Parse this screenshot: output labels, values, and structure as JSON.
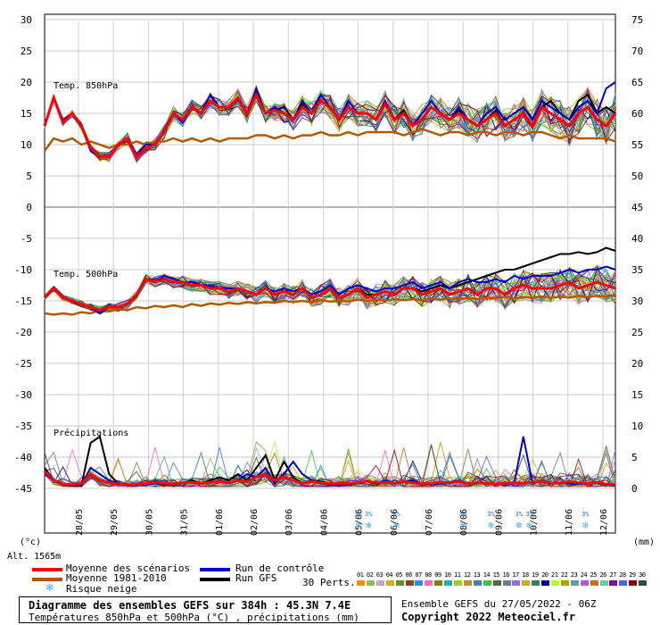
{
  "chart_data": {
    "type": "line",
    "title": "Diagramme des ensembles GEFS sur 384h : 45.3N 7.4E",
    "subtitle": "Températures 850hPa et 500hPa (°C) , précipitations (mm)",
    "run_label": "Ensemble GEFS du 27/05/2022 - 06Z",
    "copyright": "Copyright 2022 Meteociel.fr",
    "left_unit": "(°c)",
    "right_unit": "(mm)",
    "altitude": "Alt. 1565m",
    "perts_label": "30 Perts.",
    "x_dates": [
      "28/05",
      "29/05",
      "30/05",
      "31/05",
      "01/06",
      "02/06",
      "03/06",
      "04/06",
      "05/06",
      "06/06",
      "07/06",
      "08/06",
      "09/06",
      "10/06",
      "11/06",
      "12/06"
    ],
    "left_ticks": [
      "30",
      "25",
      "20",
      "15",
      "10",
      "5",
      "0",
      "-5",
      "-10",
      "-15",
      "-20",
      "-25",
      "-30",
      "-35",
      "-40",
      "-45"
    ],
    "right_ticks_top": [
      "75",
      "70",
      "65",
      "60",
      "55",
      "50"
    ],
    "right_ticks_bottom": [
      "45",
      "40",
      "35",
      "30",
      "25",
      "20",
      "15",
      "10",
      "5",
      "0"
    ],
    "panels": {
      "t850": {
        "label": "Temp. 850hPa",
        "ylim": [
          0,
          30
        ]
      },
      "t500": {
        "label": "Temp. 500hPa",
        "ylim": [
          -20,
          -5
        ]
      },
      "precip": {
        "label": "Précipitations",
        "ylim": [
          0,
          10
        ]
      }
    },
    "series": [
      {
        "name": "Moyenne des scénarios",
        "color": "#ff0000",
        "t850": [
          13,
          17.5,
          13.5,
          15,
          13,
          9.5,
          8,
          8,
          10,
          11,
          8,
          9.5,
          10,
          12,
          15,
          14,
          16,
          15,
          17,
          16,
          16,
          17.5,
          15,
          18,
          15,
          15.5,
          15,
          14,
          16,
          15,
          17,
          16,
          14,
          16,
          15,
          15,
          14,
          16.5,
          14,
          15,
          13,
          14,
          16,
          15,
          14,
          15,
          14,
          13,
          14,
          15,
          13,
          14,
          15,
          13,
          16,
          15,
          14,
          13,
          15,
          16,
          14,
          13,
          15
        ],
        "t500": [
          -14.5,
          -13,
          -14.5,
          -15,
          -15.5,
          -16,
          -16.5,
          -16,
          -16,
          -15.5,
          -14,
          -11.5,
          -12,
          -11.5,
          -12,
          -12,
          -12.5,
          -12.5,
          -13,
          -13,
          -13.5,
          -13,
          -13.5,
          -14,
          -13,
          -14,
          -13.5,
          -14,
          -13,
          -14.5,
          -14,
          -13,
          -14.5,
          -14,
          -13,
          -14.5,
          -14,
          -13.5,
          -14,
          -13,
          -13,
          -14,
          -13.5,
          -13,
          -14,
          -13.5,
          -13,
          -14,
          -13,
          -13,
          -14,
          -13,
          -12.5,
          -13,
          -13,
          -13,
          -12.5,
          -12,
          -13,
          -12.5,
          -12,
          -12.5,
          -13
        ],
        "precip": [
          2.5,
          1,
          0.3,
          0.3,
          0.5,
          2,
          1,
          0.6,
          0.4,
          0.3,
          0.3,
          0.5,
          0.7,
          0.5,
          0.4,
          0.6,
          0.7,
          0.5,
          0.7,
          0.8,
          0.6,
          1,
          0.8,
          1.5,
          2,
          1,
          1.5,
          1,
          0.5,
          0.8,
          0.6,
          0.5,
          0.5,
          0.5,
          0.6,
          0.9,
          0.6,
          0.7,
          0.5,
          0.8,
          0.6,
          0.4,
          0.5,
          0.7,
          0.6,
          0.8,
          0.5,
          0.6,
          0.5,
          0.4,
          0.5,
          0.6,
          0.5,
          0.7,
          0.8,
          0.6,
          0.5,
          0.8,
          0.6,
          0.5,
          0.7,
          0.4,
          0.3
        ]
      },
      {
        "name": "Moyenne 1981-2010",
        "color": "#b35a00",
        "t850": [
          9,
          11,
          10.5,
          11,
          10,
          10.5,
          10,
          9.5,
          10,
          10,
          10.5,
          10,
          10.5,
          10.5,
          11,
          10.5,
          11,
          10.5,
          11,
          10.5,
          11,
          11,
          11,
          11.5,
          11.5,
          11,
          11.5,
          11,
          11.5,
          11.5,
          12,
          11.5,
          11.5,
          12,
          11.5,
          12,
          12,
          12,
          12,
          11.5,
          12,
          12.5,
          12,
          11.5,
          12,
          12,
          11.5,
          12,
          12,
          11.5,
          12,
          12,
          11.5,
          12,
          12,
          11.5,
          11,
          11.5,
          11,
          11,
          11,
          11,
          10.5
        ],
        "t500": [
          -17,
          -17.2,
          -17,
          -17.2,
          -16.8,
          -17,
          -16.5,
          -16.7,
          -16.3,
          -16.5,
          -16,
          -16.2,
          -15.8,
          -16,
          -15.7,
          -16,
          -15.5,
          -15.8,
          -15.4,
          -15.6,
          -15.3,
          -15.5,
          -15.2,
          -15.4,
          -15.2,
          -15.3,
          -15,
          -15.2,
          -15,
          -15.2,
          -14.9,
          -15.1,
          -15,
          -15.1,
          -14.8,
          -15,
          -14.8,
          -15,
          -14.7,
          -14.9,
          -14.7,
          -14.9,
          -14.6,
          -14.8,
          -14.6,
          -14.8,
          -14.5,
          -14.7,
          -14.5,
          -14.6,
          -14.4,
          -14.6,
          -14.4,
          -14.5,
          -14.3,
          -14.5,
          -14.3,
          -14.5,
          -14.2,
          -14.4,
          -14.2,
          -14.3,
          -14.2
        ]
      },
      {
        "name": "Run de contrôle",
        "color": "#0000cc",
        "t850": [
          13,
          17.5,
          14,
          15,
          13,
          9,
          8,
          8,
          10,
          11,
          8.5,
          10,
          10,
          12,
          15,
          13.5,
          16,
          15,
          18,
          16,
          16,
          17.5,
          15,
          19,
          15,
          16,
          15,
          14,
          17,
          15,
          18,
          16,
          14,
          17,
          15,
          15,
          14,
          17,
          14,
          15,
          13,
          15,
          17,
          15,
          14,
          16,
          14,
          13,
          15,
          16,
          14,
          15,
          16,
          14,
          17,
          16,
          15,
          14,
          16,
          17,
          15,
          19,
          20
        ],
        "t500": [
          -14.5,
          -13,
          -14.5,
          -15,
          -15.5,
          -16,
          -17,
          -16,
          -16,
          -15.5,
          -14,
          -11.5,
          -12,
          -11,
          -11.5,
          -12,
          -12,
          -12.5,
          -12.5,
          -13,
          -13,
          -13,
          -13.5,
          -14,
          -13,
          -13.5,
          -13,
          -13.5,
          -13,
          -14,
          -13.5,
          -12.5,
          -14,
          -13,
          -12.5,
          -13,
          -13.5,
          -13,
          -13,
          -12.5,
          -12,
          -13,
          -12.5,
          -12,
          -13,
          -12,
          -11.5,
          -12,
          -12,
          -11.5,
          -12,
          -11,
          -11.5,
          -11,
          -11,
          -11,
          -10.5,
          -10,
          -10.5,
          -10,
          -10,
          -9.5,
          -10
        ],
        "precip": [
          2,
          1,
          0.2,
          0.2,
          0.3,
          3,
          2,
          1,
          0.5,
          0.2,
          0.2,
          0.3,
          0.5,
          0.3,
          0.2,
          0.5,
          0.8,
          0.5,
          0.6,
          1,
          0.5,
          1,
          2,
          1.5,
          3,
          0.5,
          2,
          4,
          2,
          1,
          0.5,
          0.3,
          0.2,
          0.3,
          0.5,
          1,
          0.5,
          1,
          0.5,
          0.8,
          1,
          0.3,
          0.4,
          0.5,
          0.7,
          1,
          0.5,
          0.6,
          0.5,
          0.4,
          0.3,
          0.5,
          8,
          0.5,
          1,
          0.5,
          0.6,
          0.5,
          0.4,
          0.5,
          0.6,
          0.3,
          0.2
        ]
      },
      {
        "name": "Run GFS",
        "color": "#000000",
        "t850": [
          13,
          17.5,
          13.5,
          15,
          13,
          9.5,
          8,
          8,
          10,
          11,
          8,
          9.5,
          10,
          12,
          15,
          14,
          16,
          15,
          17,
          16,
          16,
          17.5,
          15,
          18.5,
          15,
          15.5,
          16,
          14,
          16.5,
          15,
          17,
          16,
          14,
          16,
          15,
          15,
          14,
          16.5,
          14,
          15.5,
          13,
          14,
          16,
          15,
          14,
          15.5,
          14,
          13,
          14,
          15.5,
          13,
          14,
          15,
          13,
          16,
          17,
          15,
          14,
          17,
          18,
          15,
          16,
          15
        ],
        "t500": [
          -14.5,
          -13,
          -14.5,
          -15,
          -15.5,
          -16,
          -16.5,
          -16,
          -16,
          -15.5,
          -14,
          -11.5,
          -12,
          -11.5,
          -12,
          -12,
          -12.5,
          -12.5,
          -13,
          -13,
          -13.5,
          -13,
          -13.5,
          -14,
          -13,
          -14,
          -13.5,
          -14,
          -13,
          -14.5,
          -14,
          -13,
          -14.5,
          -14,
          -13,
          -14,
          -14,
          -13.5,
          -14,
          -13,
          -13,
          -13.5,
          -13,
          -12.5,
          -13,
          -12.5,
          -12,
          -11.5,
          -11,
          -10.5,
          -10,
          -10,
          -9.5,
          -9,
          -8.5,
          -8,
          -7.5,
          -7.5,
          -7.2,
          -7.5,
          -7.2,
          -6.5,
          -7
        ],
        "precip": [
          3,
          1,
          0.2,
          0.2,
          0.2,
          7,
          8,
          2,
          0.5,
          0.3,
          0.3,
          0.4,
          0.8,
          0.3,
          0.5,
          0.6,
          1,
          0.5,
          1,
          1.5,
          1,
          2,
          1,
          3,
          5,
          1,
          4,
          1.5,
          0.5,
          1,
          0.8,
          0.5,
          0.4,
          0.5,
          0.6,
          0.8,
          0.5,
          0.7,
          0.5,
          0.8,
          0.6,
          0.4,
          0.5,
          0.7,
          0.6,
          0.8,
          0.5,
          0.6,
          0.5,
          0.4,
          0.5,
          0.6,
          0.5,
          0.7,
          0.8,
          0.6,
          0.5,
          0.8,
          0.6,
          0.5,
          0.7,
          0.4,
          0.3
        ]
      }
    ],
    "legend": [
      {
        "label": "Moyenne des scénarios",
        "color": "#ff0000"
      },
      {
        "label": "Moyenne 1981-2010",
        "color": "#b35a00"
      },
      {
        "label": "Run de contrôle",
        "color": "#0000cc"
      },
      {
        "label": "Run GFS",
        "color": "#000000"
      },
      {
        "label": "Risque neige",
        "color": "#3fa9f5"
      }
    ],
    "snow_markers": [
      {
        "date_index": 8.1,
        "label": "3%"
      },
      {
        "date_index": 8.4,
        "label": "3%"
      },
      {
        "date_index": 9.2,
        "label": "3%"
      },
      {
        "date_index": 11.1,
        "label": "3%"
      },
      {
        "date_index": 11.9,
        "label": "3%"
      },
      {
        "date_index": 12.7,
        "label": "3%"
      },
      {
        "date_index": 13.0,
        "label": "3%"
      },
      {
        "date_index": 14.6,
        "label": "3%"
      }
    ],
    "perturbations": [
      "01",
      "02",
      "03",
      "04",
      "05",
      "06",
      "07",
      "08",
      "09",
      "10",
      "11",
      "12",
      "13",
      "14",
      "15",
      "16",
      "17",
      "18",
      "19",
      "20",
      "21",
      "22",
      "23",
      "24",
      "25",
      "26",
      "27",
      "28",
      "29",
      "30"
    ],
    "perturbation_colors": [
      "#ff8c00",
      "#8fbc5a",
      "#c8a2c8",
      "#d4b000",
      "#6b8e23",
      "#8b4513",
      "#1e90ff",
      "#ff69b4",
      "#808000",
      "#20b2aa",
      "#9acd32",
      "#cd853f",
      "#4682b4",
      "#32cd32",
      "#556b2f",
      "#708090",
      "#9370db",
      "#daa520",
      "#2e8b57",
      "#000080",
      "#adff2f",
      "#b0a000",
      "#5f9ea0",
      "#ba55d3",
      "#d2691e",
      "#66cdaa",
      "#8b008b",
      "#4169e1",
      "#8b0000",
      "#2f4f4f"
    ],
    "grid": true,
    "legend_position": "bottom"
  }
}
